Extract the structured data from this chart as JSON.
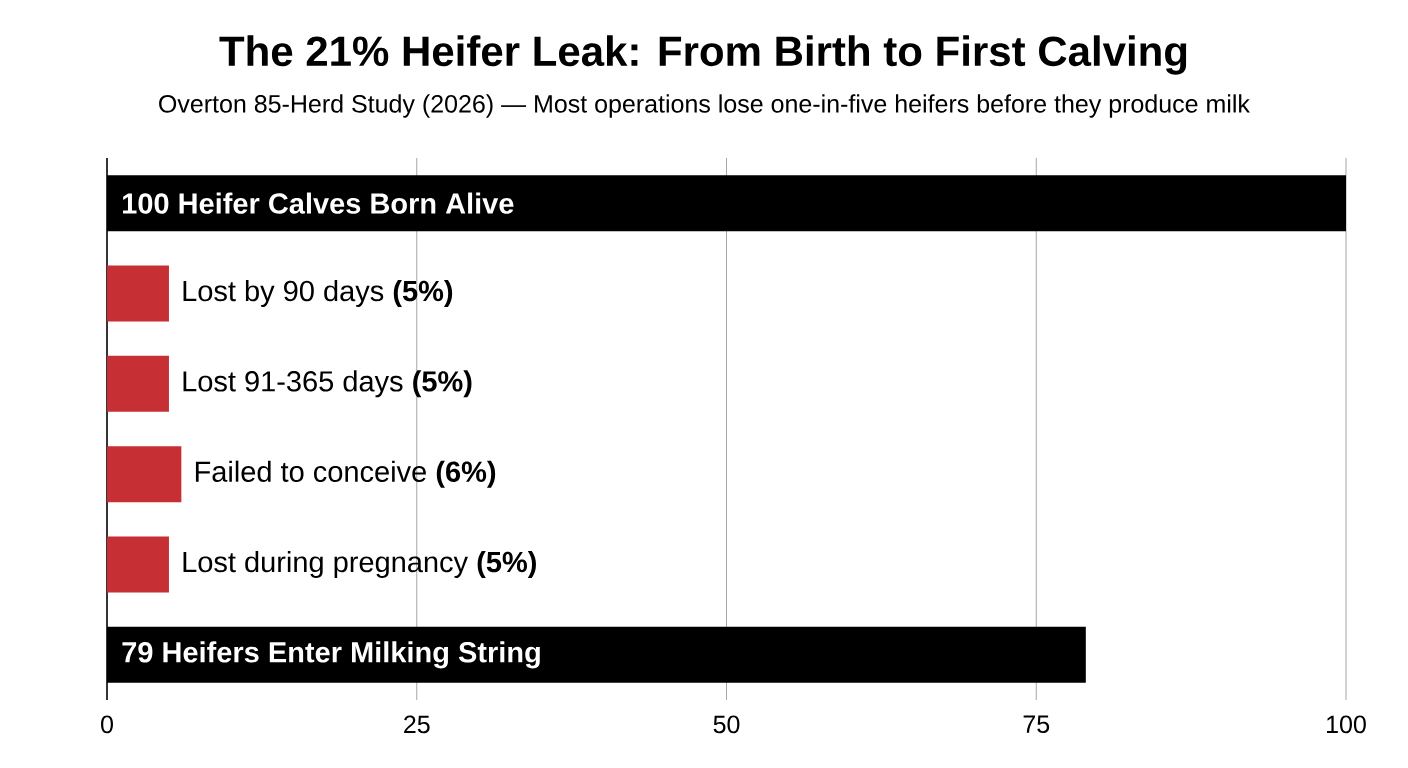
{
  "chart_data": {
    "type": "bar",
    "orientation": "horizontal",
    "title": "The 21% Heifer Leak: From Birth to First Calving",
    "subtitle": "Overton 85-Herd Study (2026) — Most operations lose one-in-five heifers before they produce milk",
    "categories": [
      "100 Heifer Calves Born Alive",
      "Lost by 90 days **(5%)**",
      "Lost 91-365 days **(5%)**",
      "Failed to conceive **(6%)**",
      "Lost during pregnancy **(5%)**",
      "79 Heifers Enter Milking String"
    ],
    "values": [
      100,
      5,
      5,
      6,
      5,
      79
    ],
    "colors": [
      "#000000",
      "#c62f33",
      "#c62f33",
      "#c62f33",
      "#c62f33",
      "#000000"
    ],
    "xlim": [
      0,
      100
    ],
    "xticks": [
      0,
      25,
      50,
      75,
      100
    ],
    "grid": "x"
  }
}
